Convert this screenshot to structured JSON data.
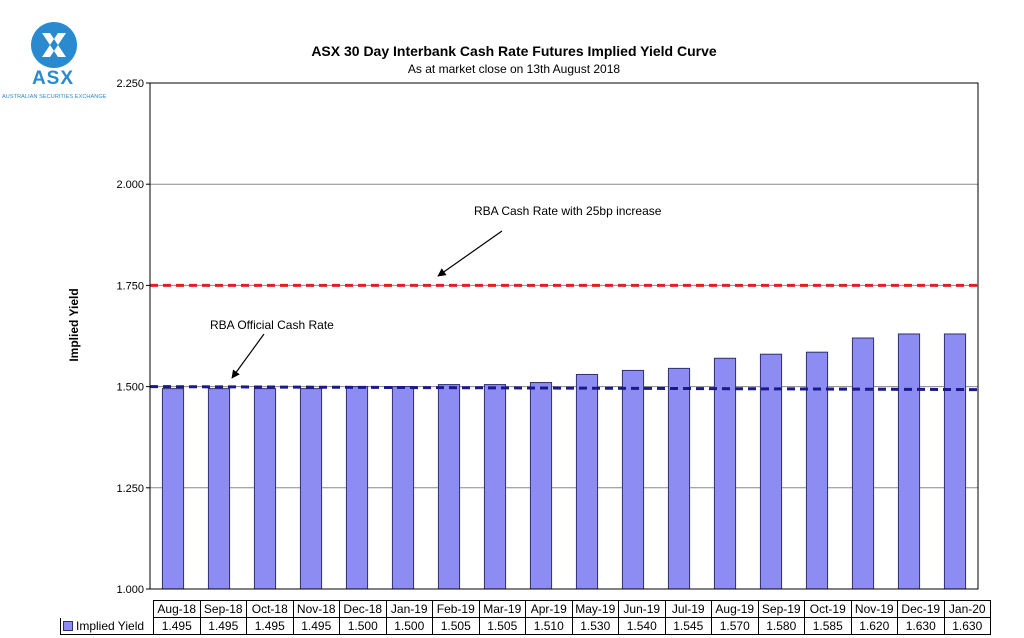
{
  "logo": {
    "text": "ASX",
    "subtext": "AUSTRALIAN SECURITIES EXCHANGE",
    "color": "#2a8ad0"
  },
  "colors": {
    "bar_fill": "#8c8cf2",
    "bar_stroke": "#303070",
    "red_line": "#e02020",
    "blue_line": "#1a1a8c"
  },
  "chart_data": {
    "type": "bar",
    "title": "ASX 30 Day Interbank Cash Rate Futures Implied Yield Curve",
    "subtitle": "As at market close on 13th August 2018",
    "ylabel": "Implied Yield",
    "xlabel": "",
    "ylim": [
      1.0,
      2.25
    ],
    "yticks": [
      "1.000",
      "1.250",
      "1.500",
      "1.750",
      "2.000",
      "2.250"
    ],
    "grid": true,
    "categories": [
      "Aug-18",
      "Sep-18",
      "Oct-18",
      "Nov-18",
      "Dec-18",
      "Jan-19",
      "Feb-19",
      "Mar-19",
      "Apr-19",
      "May-19",
      "Jun-19",
      "Jul-19",
      "Aug-19",
      "Sep-19",
      "Oct-19",
      "Nov-19",
      "Dec-19",
      "Jan-20"
    ],
    "series": [
      {
        "name": "Implied Yield",
        "values": [
          1.495,
          1.495,
          1.495,
          1.495,
          1.5,
          1.5,
          1.505,
          1.505,
          1.51,
          1.53,
          1.54,
          1.545,
          1.57,
          1.58,
          1.585,
          1.62,
          1.63,
          1.63
        ],
        "labels": [
          "1.495",
          "1.495",
          "1.495",
          "1.495",
          "1.500",
          "1.500",
          "1.505",
          "1.505",
          "1.510",
          "1.530",
          "1.540",
          "1.545",
          "1.570",
          "1.580",
          "1.585",
          "1.620",
          "1.630",
          "1.630"
        ]
      }
    ],
    "reference_lines": [
      {
        "value": 1.75,
        "style": "dashed",
        "color": "red",
        "annotation": "RBA Cash Rate with 25bp increase"
      },
      {
        "value": 1.5,
        "style": "dashed",
        "color": "blue",
        "annotation": "RBA Official Cash Rate"
      }
    ]
  }
}
